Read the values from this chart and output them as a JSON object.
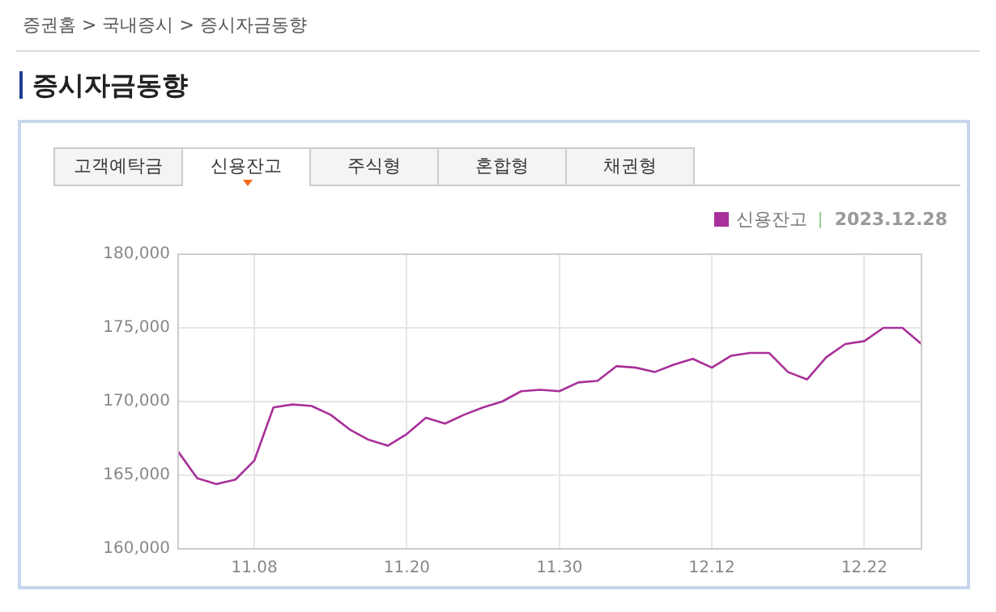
{
  "chart_data": {
    "type": "line",
    "title": "증시자금동향",
    "annotations": [
      "증권홈 > 국내증시 > 증시자금동향",
      "고객예탁금",
      "신용잔고",
      "주식형",
      "혼합형",
      "채권형",
      "2023.12.28"
    ],
    "categories": [
      null,
      null,
      null,
      null,
      "11.08",
      null,
      null,
      null,
      null,
      null,
      null,
      null,
      "11.20",
      null,
      null,
      null,
      null,
      null,
      null,
      null,
      "11.30",
      null,
      null,
      null,
      null,
      null,
      null,
      null,
      "12.12",
      null,
      null,
      null,
      null,
      null,
      null,
      null,
      "12.22",
      null,
      null,
      null
    ],
    "series": [
      {
        "name": "신용잔고",
        "color": "#a8309a",
        "values": [
          166600,
          164800,
          164400,
          164700,
          166000,
          169600,
          169800,
          169700,
          169100,
          168100,
          167400,
          167000,
          167800,
          168900,
          168500,
          169100,
          169600,
          170000,
          170700,
          170800,
          170700,
          171300,
          171400,
          172400,
          172300,
          172000,
          172500,
          172900,
          172300,
          173100,
          173300,
          173300,
          172000,
          171500,
          173000,
          173900,
          174100,
          175000,
          175000,
          173900
        ]
      }
    ],
    "ylim": [
      160000,
      180000
    ],
    "yticks": [
      {
        "value": 160000,
        "label": "160,000"
      },
      {
        "value": 165000,
        "label": "165,000"
      },
      {
        "value": 170000,
        "label": "170,000"
      },
      {
        "value": 175000,
        "label": "175,000"
      },
      {
        "value": 180000,
        "label": "180,000"
      }
    ],
    "grid": true,
    "legend": "top right",
    "marker": "none",
    "line_style": "solid"
  }
}
